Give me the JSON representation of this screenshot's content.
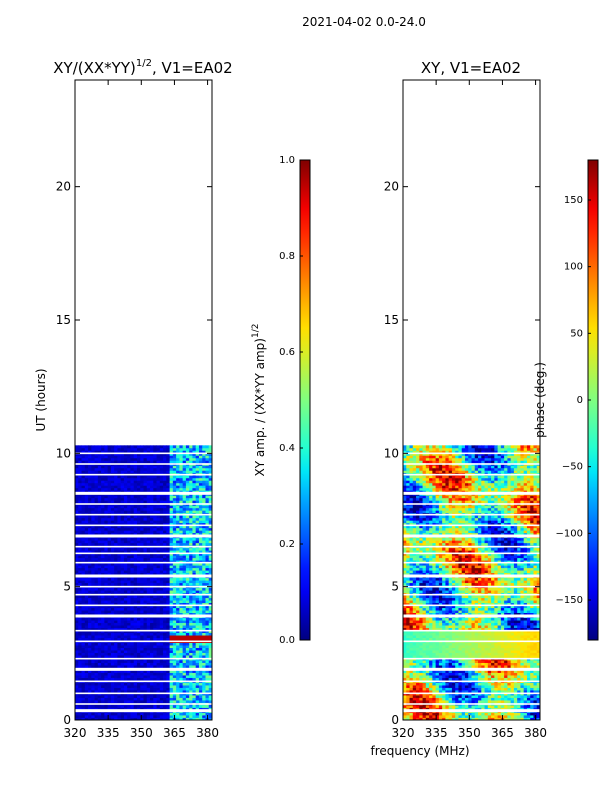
{
  "suptitle": "2021-04-02 0.0-24.0",
  "colors": {
    "jet": [
      "#00007f",
      "#0000ff",
      "#007fff",
      "#00ffff",
      "#7fff7f",
      "#ffff00",
      "#ff7f00",
      "#ff0000",
      "#7f0000"
    ],
    "frame": "#000000",
    "gap": "#ffffff"
  },
  "chart_data": [
    {
      "type": "heatmap",
      "title": "XY/(XX*YY)$^{1/2}$, V1=EA02",
      "title_main": "XY/(XX*YY)",
      "title_sup": "1/2",
      "title_rest": ", V1=EA02",
      "xlabel": "",
      "ylabel": "UT (hours)",
      "xlim": [
        320,
        382
      ],
      "ylim": [
        0,
        24
      ],
      "xticks": [
        320,
        335,
        350,
        365,
        380
      ],
      "yticks": [
        0,
        5,
        10,
        15,
        20
      ],
      "data_extent_hours": [
        0,
        10.3
      ],
      "quantity": "normalized amplitude",
      "colorbar": {
        "label_main": "XY amp. / (XX*YY amp)",
        "label_sup": "1/2",
        "range": [
          0.0,
          1.0
        ],
        "ticks": [
          "0.0",
          "0.2",
          "0.4",
          "0.6",
          "0.8",
          "1.0"
        ]
      }
    },
    {
      "type": "heatmap",
      "title": "XY, V1=EA02",
      "xlabel": "frequency (MHz)",
      "ylabel": "",
      "xlim": [
        320,
        382
      ],
      "ylim": [
        0,
        24
      ],
      "xticks": [
        320,
        335,
        350,
        365,
        380
      ],
      "yticks": [
        0,
        5,
        10,
        15,
        20
      ],
      "data_extent_hours": [
        0,
        10.3
      ],
      "quantity": "phase",
      "colorbar": {
        "label": "phase (deg.)",
        "range": [
          -180,
          180
        ],
        "ticks": [
          "−150",
          "−100",
          "−50",
          "0",
          "50",
          "100",
          "150"
        ],
        "tick_values": [
          -150,
          -100,
          -50,
          0,
          50,
          100,
          150
        ]
      }
    }
  ]
}
